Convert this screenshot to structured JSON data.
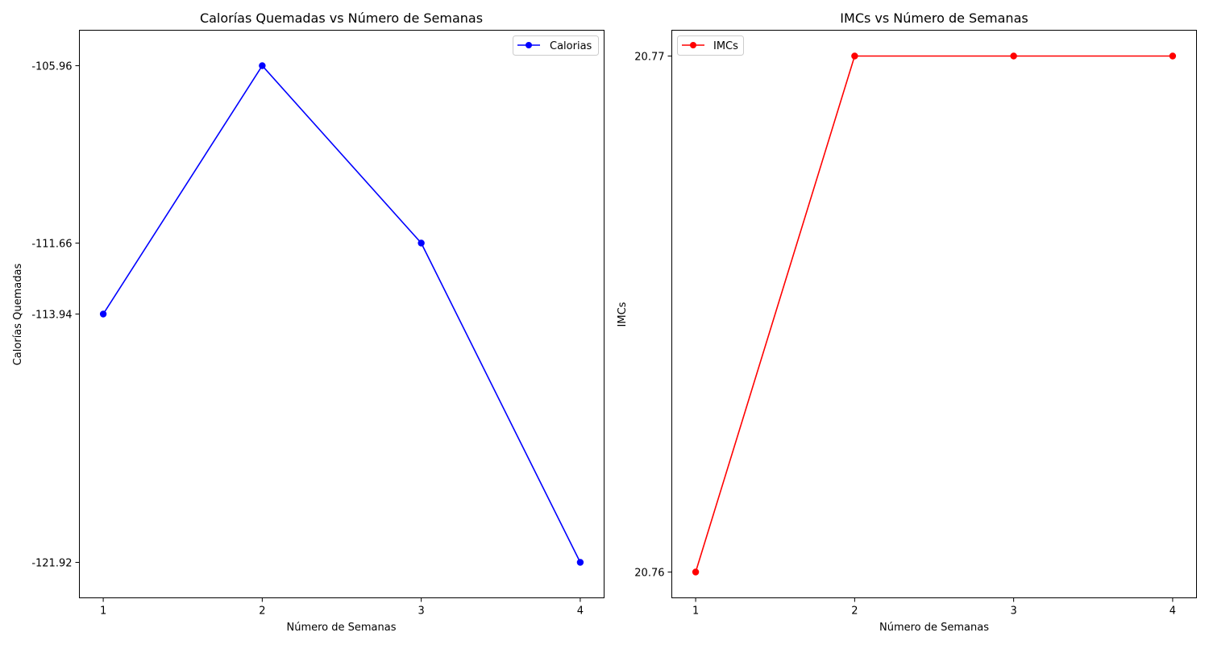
{
  "chart_data": [
    {
      "type": "line",
      "title": "Calorías Quemadas vs Número de Semanas",
      "xlabel": "Número de Semanas",
      "ylabel": "Calorías Quemadas",
      "x": [
        1,
        2,
        3,
        4
      ],
      "xticks": [
        "1",
        "2",
        "3",
        "4"
      ],
      "yticks": [
        "-105.96",
        "-111.66",
        "-113.94",
        "-121.92"
      ],
      "ytick_values": [
        -105.96,
        -111.66,
        -113.94,
        -121.92
      ],
      "ylim": [
        -123.06,
        -104.82
      ],
      "series": [
        {
          "name": "Calorias",
          "values": [
            -113.94,
            -105.96,
            -111.66,
            -121.92
          ],
          "color": "#0000ff"
        }
      ],
      "legend": "top-right",
      "grid": false
    },
    {
      "type": "line",
      "title": "IMCs vs Número de Semanas",
      "xlabel": "Número de Semanas",
      "ylabel": "IMCs",
      "x": [
        1,
        2,
        3,
        4
      ],
      "xticks": [
        "1",
        "2",
        "3",
        "4"
      ],
      "yticks": [
        "20.77",
        "20.76"
      ],
      "ytick_values": [
        20.77,
        20.76
      ],
      "ylim": [
        20.7595,
        20.7705
      ],
      "series": [
        {
          "name": "IMCs",
          "values": [
            20.76,
            20.77,
            20.77,
            20.77
          ],
          "color": "#ff0000"
        }
      ],
      "legend": "top-left",
      "grid": false
    }
  ]
}
